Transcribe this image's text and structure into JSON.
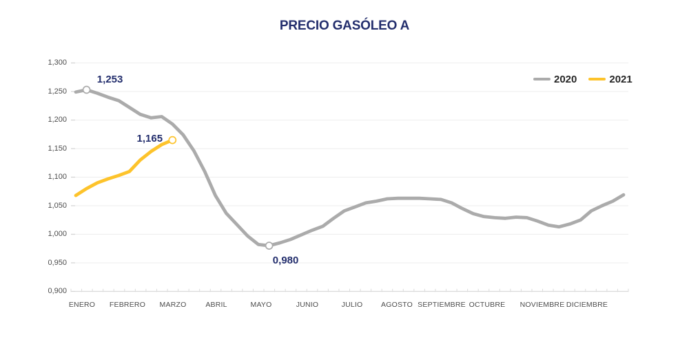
{
  "page": {
    "background": "#ffffff"
  },
  "chart_data": {
    "type": "line",
    "title": "PRECIO GASÓLEO A",
    "title_color": "#232e6d",
    "label_color": "#232e6d",
    "axis_text_color": "#4c4c4c",
    "x_axis": {
      "month_labels": [
        "ENERO",
        "FEBRERO",
        "MARZO",
        "ABRIL",
        "MAYO",
        "JUNIO",
        "JULIO",
        "AGOSTO",
        "SEPTIEMBRE",
        "OCTUBRE",
        "NOVIEMBRE",
        "DICIEMBRE"
      ]
    },
    "y_axis": {
      "min": 0.9,
      "max": 1.3,
      "step": 0.05,
      "tick_labels": [
        "1,300",
        "1,250",
        "1,200",
        "1,150",
        "1,100",
        "1,050",
        "1,000",
        "0,950",
        "0,900"
      ],
      "grid": true
    },
    "series": [
      {
        "name": "2020",
        "color": "#ABABAB",
        "values": [
          1.249,
          1.253,
          1.247,
          1.24,
          1.234,
          1.222,
          1.21,
          1.204,
          1.206,
          1.193,
          1.174,
          1.146,
          1.11,
          1.068,
          1.037,
          1.017,
          0.997,
          0.982,
          0.98,
          0.985,
          0.991,
          0.999,
          1.007,
          1.014,
          1.028,
          1.041,
          1.048,
          1.055,
          1.058,
          1.062,
          1.063,
          1.063,
          1.063,
          1.062,
          1.061,
          1.055,
          1.045,
          1.036,
          1.031,
          1.029,
          1.028,
          1.03,
          1.029,
          1.023,
          1.016,
          1.013,
          1.018,
          1.025,
          1.041,
          1.05,
          1.058,
          1.069
        ]
      },
      {
        "name": "2021",
        "color": "#FDC32B",
        "values": [
          1.068,
          1.08,
          1.09,
          1.097,
          1.103,
          1.11,
          1.13,
          1.145,
          1.157,
          1.165
        ]
      }
    ],
    "annotations": [
      {
        "series": "2020",
        "index": 1,
        "label": "1,253",
        "placement": "above-right"
      },
      {
        "series": "2021",
        "index": 9,
        "label": "1,165",
        "placement": "left"
      },
      {
        "series": "2020",
        "index": 18,
        "label": "0,980",
        "placement": "below-right"
      }
    ],
    "legend": {
      "position": "top-right",
      "entries": [
        "2020",
        "2021"
      ]
    }
  }
}
